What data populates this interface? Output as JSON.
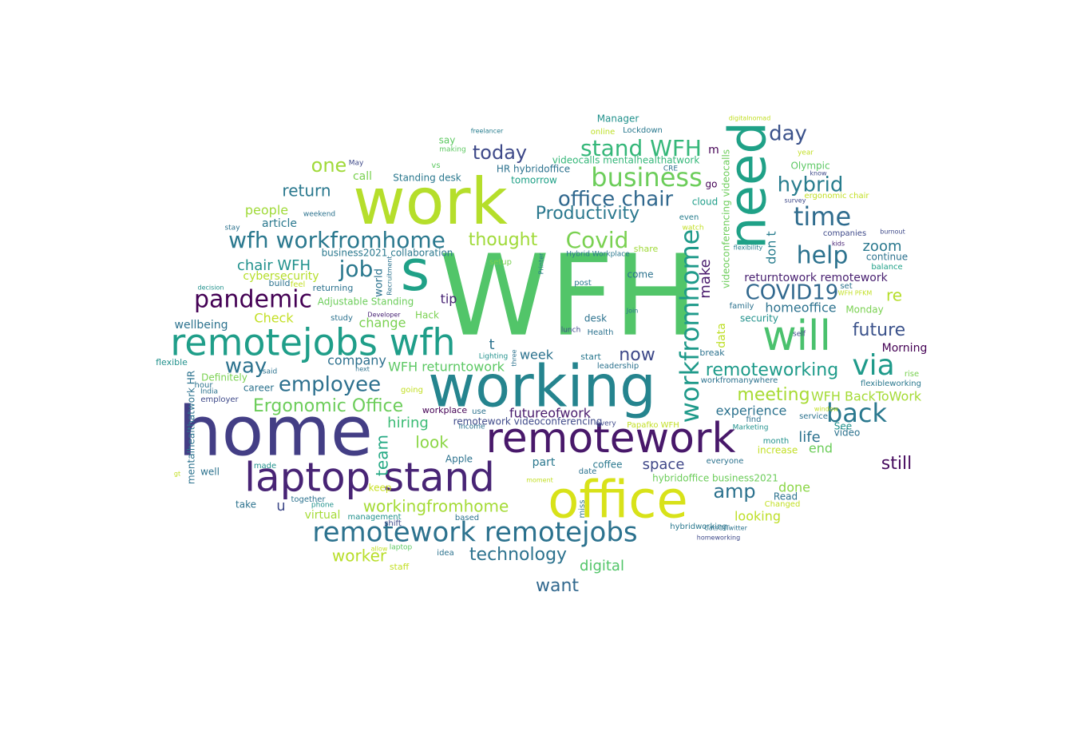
{
  "words": [
    {
      "text": "WFH",
      "color": "#52c569"
    },
    {
      "text": "work",
      "color": "#b5de2b"
    },
    {
      "text": "home",
      "color": "#433e85"
    },
    {
      "text": "working",
      "color": "#25848e"
    },
    {
      "text": "office",
      "color": "#d8e219"
    },
    {
      "text": "remotework",
      "color": "#48186a"
    },
    {
      "text": "laptop stand",
      "color": "#482475"
    },
    {
      "text": "s",
      "color": "#1fa187"
    },
    {
      "text": "need",
      "color": "#1fa187"
    },
    {
      "text": "will",
      "color": "#4ac16d"
    },
    {
      "text": "remotejobs wfh",
      "color": "#1f9e89"
    },
    {
      "text": "remotework remotejobs",
      "color": "#2c728e"
    },
    {
      "text": "workfromhome",
      "color": "#1f9a8a"
    },
    {
      "text": "via",
      "color": "#1f9a8a"
    },
    {
      "text": "back",
      "color": "#2a788e"
    },
    {
      "text": "business",
      "color": "#6ccd5a"
    },
    {
      "text": "stand WFH",
      "color": "#35b779"
    },
    {
      "text": "pandemic",
      "color": "#440154"
    },
    {
      "text": "wfh workfromhome",
      "color": "#2a788e"
    },
    {
      "text": "office chair",
      "color": "#31688e"
    },
    {
      "text": "Covid",
      "color": "#7ad151"
    },
    {
      "text": "time",
      "color": "#2f6c8e"
    },
    {
      "text": "help",
      "color": "#2c728e"
    },
    {
      "text": "hybrid",
      "color": "#287d8e"
    },
    {
      "text": "day",
      "color": "#3b528b"
    },
    {
      "text": "COVID19",
      "color": "#31688e"
    },
    {
      "text": "Productivity",
      "color": "#2a788e"
    },
    {
      "text": "employee",
      "color": "#2d708e"
    },
    {
      "text": "Ergonomic Office",
      "color": "#6ccd5a"
    },
    {
      "text": "job",
      "color": "#2a788e"
    },
    {
      "text": "way",
      "color": "#2c728e"
    },
    {
      "text": "today",
      "color": "#3e4989"
    },
    {
      "text": "thought",
      "color": "#a0da39"
    },
    {
      "text": "one",
      "color": "#a0da39"
    },
    {
      "text": "return",
      "color": "#2a788e"
    },
    {
      "text": "chair WFH",
      "color": "#21918c"
    },
    {
      "text": "remoteworking",
      "color": "#1e9b8a"
    },
    {
      "text": "meeting",
      "color": "#a8db34"
    },
    {
      "text": "future",
      "color": "#3b528b"
    },
    {
      "text": "still",
      "color": "#460b5e"
    },
    {
      "text": "now",
      "color": "#3e4989"
    },
    {
      "text": "amp",
      "color": "#2c728e"
    },
    {
      "text": "workingfromhome",
      "color": "#a5db36"
    },
    {
      "text": "technology",
      "color": "#2c728e"
    },
    {
      "text": "want",
      "color": "#31688e"
    },
    {
      "text": "worker",
      "color": "#b8de29"
    },
    {
      "text": "team",
      "color": "#23a983"
    },
    {
      "text": "look",
      "color": "#8bd646"
    },
    {
      "text": "hiring",
      "color": "#3bbb75"
    },
    {
      "text": "futureofwork",
      "color": "#481a6c"
    },
    {
      "text": "WFH returntowork",
      "color": "#5cc863"
    },
    {
      "text": "WFH BackToWork",
      "color": "#a5db36"
    },
    {
      "text": "experience",
      "color": "#2c728e"
    },
    {
      "text": "zoom",
      "color": "#2a788e"
    },
    {
      "text": "re",
      "color": "#b5de2b"
    },
    {
      "text": "make",
      "color": "#481a6c"
    },
    {
      "text": "don t",
      "color": "#287d8e"
    },
    {
      "text": "returntowork remotework",
      "color": "#481f70"
    },
    {
      "text": "homeoffice",
      "color": "#2c728e"
    },
    {
      "text": "life",
      "color": "#2c728e"
    },
    {
      "text": "end",
      "color": "#6ccd5a"
    },
    {
      "text": "space",
      "color": "#3f4788"
    },
    {
      "text": "done",
      "color": "#8bd646"
    },
    {
      "text": "looking",
      "color": "#bddf26"
    },
    {
      "text": "digital",
      "color": "#52c569"
    },
    {
      "text": "week",
      "color": "#2c728e"
    },
    {
      "text": "company",
      "color": "#2d708e"
    },
    {
      "text": "change",
      "color": "#7ad151"
    },
    {
      "text": "Check",
      "color": "#c2df23"
    },
    {
      "text": "wellbeing",
      "color": "#2c728e"
    },
    {
      "text": "people",
      "color": "#a0da39"
    },
    {
      "text": "article",
      "color": "#2a788e"
    },
    {
      "text": "cybersecurity",
      "color": "#b5de2b"
    },
    {
      "text": "Adjustable Standing",
      "color": "#6ccd5a"
    },
    {
      "text": "tip",
      "color": "#482475"
    },
    {
      "text": "Hack",
      "color": "#7ad151"
    },
    {
      "text": "call",
      "color": "#7ad151"
    },
    {
      "text": "Standing desk",
      "color": "#2a788e"
    },
    {
      "text": "HR hybridoffice",
      "color": "#2c728e"
    },
    {
      "text": "tomorrow",
      "color": "#1fa187"
    },
    {
      "text": "videocalls mentalhealthatwork",
      "color": "#35b779"
    },
    {
      "text": "videoconferencing videocalls",
      "color": "#6ccd5a"
    },
    {
      "text": "m",
      "color": "#440154"
    },
    {
      "text": "go",
      "color": "#440154"
    },
    {
      "text": "cloud",
      "color": "#1f9e89"
    },
    {
      "text": "data",
      "color": "#bddf26"
    },
    {
      "text": "Morning",
      "color": "#440154"
    },
    {
      "text": "remotework videoconferencing",
      "color": "#3e4989"
    },
    {
      "text": "hybridoffice business2021",
      "color": "#6ccd5a"
    },
    {
      "text": "coffee",
      "color": "#2a788e"
    },
    {
      "text": "part",
      "color": "#2a788e"
    },
    {
      "text": "u",
      "color": "#3e4989"
    },
    {
      "text": "virtual",
      "color": "#a5db36"
    },
    {
      "text": "take",
      "color": "#2c728e"
    },
    {
      "text": "keep",
      "color": "#c8e020"
    },
    {
      "text": "business2021 collaboration",
      "color": "#2a788e"
    },
    {
      "text": "Manager",
      "color": "#21918c"
    },
    {
      "text": "online",
      "color": "#bddf26"
    },
    {
      "text": "Lockdown",
      "color": "#2a788e"
    },
    {
      "text": "say",
      "color": "#5ec962"
    },
    {
      "text": "making",
      "color": "#5ec962"
    },
    {
      "text": "freelancer",
      "color": "#287d8e"
    },
    {
      "text": "May",
      "color": "#3e4989"
    },
    {
      "text": "vs",
      "color": "#5ec962"
    },
    {
      "text": "CRE",
      "color": "#2c728e"
    },
    {
      "text": "digitalnomad",
      "color": "#c2df23"
    },
    {
      "text": "year",
      "color": "#c2df23"
    },
    {
      "text": "Olympic",
      "color": "#5cc863"
    },
    {
      "text": "know",
      "color": "#3e4989"
    },
    {
      "text": "ergonomic chair",
      "color": "#c2df23"
    },
    {
      "text": "survey",
      "color": "#3e4989"
    },
    {
      "text": "companies",
      "color": "#3e4989"
    },
    {
      "text": "burnout",
      "color": "#3e4989"
    },
    {
      "text": "kids",
      "color": "#482475"
    },
    {
      "text": "flexibility",
      "color": "#287d8e"
    },
    {
      "text": "continue",
      "color": "#2c728e"
    },
    {
      "text": "balance",
      "color": "#1fa187"
    },
    {
      "text": "even",
      "color": "#287d8e"
    },
    {
      "text": "watch",
      "color": "#c2df23"
    },
    {
      "text": "share",
      "color": "#a0da39"
    },
    {
      "text": "setup",
      "color": "#7ad151"
    },
    {
      "text": "Hybrid Workplace",
      "color": "#2a788e"
    },
    {
      "text": "Printer",
      "color": "#2a788e"
    },
    {
      "text": "post",
      "color": "#2a788e"
    },
    {
      "text": "come",
      "color": "#2c728e"
    },
    {
      "text": "set",
      "color": "#2c728e"
    },
    {
      "text": "WFH PFKM",
      "color": "#c2df23"
    },
    {
      "text": "family",
      "color": "#2c728e"
    },
    {
      "text": "Monday",
      "color": "#7ad151"
    },
    {
      "text": "security",
      "color": "#21918c"
    },
    {
      "text": "self",
      "color": "#3e4989"
    },
    {
      "text": "Join",
      "color": "#2c728e"
    },
    {
      "text": "lunch",
      "color": "#3e4989"
    },
    {
      "text": "Health",
      "color": "#2c728e"
    },
    {
      "text": "desk",
      "color": "#2c728e"
    },
    {
      "text": "start",
      "color": "#2a788e"
    },
    {
      "text": "leadership",
      "color": "#2c728e"
    },
    {
      "text": "break",
      "color": "#2c728e"
    },
    {
      "text": "workfromanywhere",
      "color": "#2c728e"
    },
    {
      "text": "rise",
      "color": "#7ad151"
    },
    {
      "text": "flexibleworking",
      "color": "#2a788e"
    },
    {
      "text": "window",
      "color": "#c2df23"
    },
    {
      "text": "service",
      "color": "#2c728e"
    },
    {
      "text": "See",
      "color": "#21918c"
    },
    {
      "text": "video",
      "color": "#2c728e"
    },
    {
      "text": "find",
      "color": "#2c728e"
    },
    {
      "text": "Marketing",
      "color": "#21918c"
    },
    {
      "text": "month",
      "color": "#21918c"
    },
    {
      "text": "increase",
      "color": "#c2df23"
    },
    {
      "text": "everyone",
      "color": "#2c728e"
    },
    {
      "text": "Read",
      "color": "#2c728e"
    },
    {
      "text": "Changed",
      "color": "#c2df23"
    },
    {
      "text": "hybridworking",
      "color": "#2a788e"
    },
    {
      "text": "CatsOfTwitter",
      "color": "#2c728e"
    },
    {
      "text": "homeworking",
      "color": "#3e4989"
    },
    {
      "text": "Papafko WFH",
      "color": "#c2df23"
    },
    {
      "text": "every",
      "color": "#3e4989"
    },
    {
      "text": "Income",
      "color": "#2c728e"
    },
    {
      "text": "use",
      "color": "#2c728e"
    },
    {
      "text": "workplace",
      "color": "#440154"
    },
    {
      "text": "Apple",
      "color": "#2c728e"
    },
    {
      "text": "date",
      "color": "#2c728e"
    },
    {
      "text": "moment",
      "color": "#c2df23"
    },
    {
      "text": "miss",
      "color": "#2c728e"
    },
    {
      "text": "idea",
      "color": "#2c728e"
    },
    {
      "text": "staff",
      "color": "#c2df23"
    },
    {
      "text": "laptop",
      "color": "#5ec962"
    },
    {
      "text": "allow",
      "color": "#c2df23"
    },
    {
      "text": "shift",
      "color": "#3e4989"
    },
    {
      "text": "based",
      "color": "#2c728e"
    },
    {
      "text": "management",
      "color": "#21918c"
    },
    {
      "text": "phone",
      "color": "#21918c"
    },
    {
      "text": "together",
      "color": "#2c728e"
    },
    {
      "text": "going",
      "color": "#c2df23"
    },
    {
      "text": "career",
      "color": "#2c728e"
    },
    {
      "text": "employer",
      "color": "#3e4989"
    },
    {
      "text": "India",
      "color": "#2c728e"
    },
    {
      "text": "hour",
      "color": "#2c728e"
    },
    {
      "text": "Definitely",
      "color": "#7ad151"
    },
    {
      "text": "said",
      "color": "#2c728e"
    },
    {
      "text": "next",
      "color": "#2c728e"
    },
    {
      "text": "three",
      "color": "#2c728e"
    },
    {
      "text": "Lighting",
      "color": "#21918c"
    },
    {
      "text": "Developer",
      "color": "#482475"
    },
    {
      "text": "study",
      "color": "#2c728e"
    },
    {
      "text": "returning",
      "color": "#2c728e"
    },
    {
      "text": "build",
      "color": "#2c728e"
    },
    {
      "text": "feel",
      "color": "#c2df23"
    },
    {
      "text": "decision",
      "color": "#21918c"
    },
    {
      "text": "world",
      "color": "#2c728e"
    },
    {
      "text": "Recruitment",
      "color": "#2c728e"
    },
    {
      "text": "stay",
      "color": "#2c728e"
    },
    {
      "text": "weekend",
      "color": "#2c728e"
    },
    {
      "text": "flexible",
      "color": "#21918c"
    },
    {
      "text": "well",
      "color": "#2c728e"
    },
    {
      "text": "made",
      "color": "#21918c"
    },
    {
      "text": "gt",
      "color": "#c2df23"
    },
    {
      "text": "mentalhealthatwork HR",
      "color": "#2c728e"
    },
    {
      "text": "t",
      "color": "#2c728e"
    }
  ]
}
